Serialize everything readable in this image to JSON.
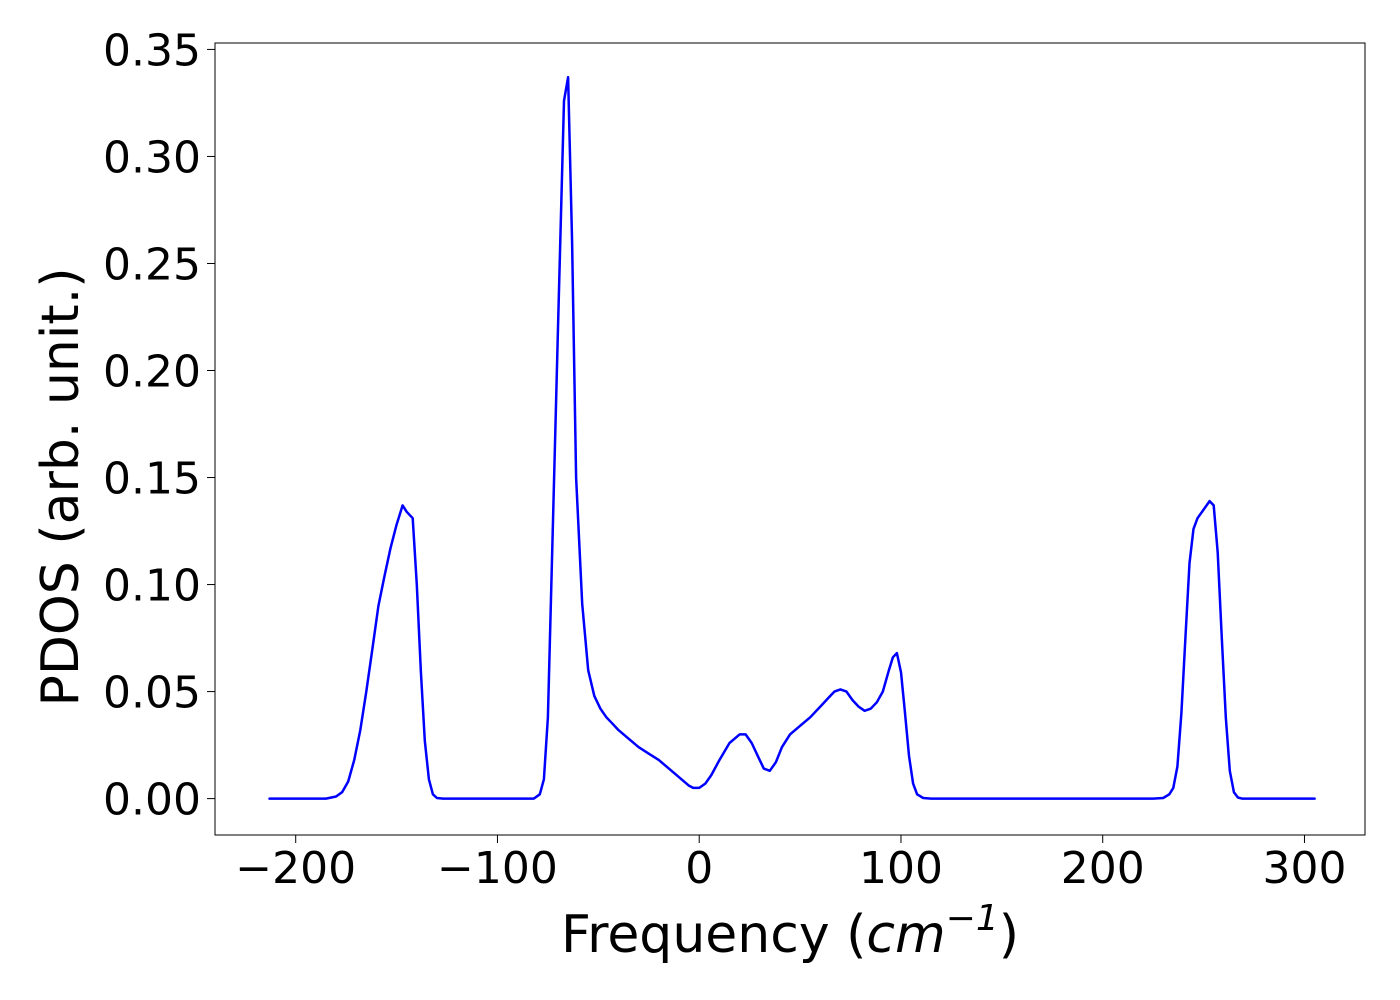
{
  "chart_data": {
    "type": "line",
    "title": "",
    "xlabel_parts": {
      "prefix": "Frequency (",
      "math_base": "cm",
      "math_exponent": "−1",
      "suffix": ")"
    },
    "ylabel": "PDOS (arb. unit.)",
    "xlim": [
      -240,
      330
    ],
    "ylim": [
      -0.017,
      0.353
    ],
    "x_ticks": [
      -200,
      -100,
      0,
      100,
      200,
      300
    ],
    "x_tick_labels": [
      "−200",
      "−100",
      "0",
      "100",
      "200",
      "300"
    ],
    "y_ticks": [
      0.0,
      0.05,
      0.1,
      0.15,
      0.2,
      0.25,
      0.3,
      0.35
    ],
    "y_tick_labels": [
      "0.00",
      "0.05",
      "0.10",
      "0.15",
      "0.20",
      "0.25",
      "0.30",
      "0.35"
    ],
    "grid": false,
    "line_color": "#0000ff",
    "series": [
      {
        "x": [
          -213,
          -185,
          -180,
          -177,
          -174,
          -171,
          -168,
          -165,
          -162,
          -159,
          -156,
          -153,
          -150,
          -147,
          -145,
          -142,
          -140,
          -138,
          -136,
          -134,
          -132,
          -130,
          -127,
          -124,
          -120,
          -110,
          -100,
          -90,
          -82,
          -79,
          -77,
          -75,
          -73,
          -70,
          -67,
          -65,
          -63,
          -61,
          -58,
          -55,
          -52,
          -49,
          -46,
          -43,
          -40,
          -35,
          -30,
          -25,
          -20,
          -15,
          -10,
          -5,
          -3,
          0,
          3,
          6,
          10,
          15,
          20,
          23,
          26,
          29,
          32,
          35,
          38,
          41,
          45,
          50,
          55,
          60,
          64,
          67,
          70,
          73,
          76,
          79,
          82,
          85,
          88,
          91,
          94,
          96,
          98,
          100,
          102,
          104,
          106,
          108,
          111,
          115,
          150,
          200,
          225,
          230,
          233,
          235,
          237,
          239,
          241,
          243,
          245,
          247,
          250,
          253,
          255,
          257,
          259,
          261,
          263,
          265,
          267,
          269,
          271,
          274,
          280,
          305
        ],
        "y": [
          0.0,
          0.0,
          0.001,
          0.003,
          0.008,
          0.018,
          0.032,
          0.05,
          0.07,
          0.09,
          0.104,
          0.117,
          0.128,
          0.137,
          0.134,
          0.131,
          0.1,
          0.06,
          0.027,
          0.009,
          0.002,
          0.0003,
          0.0,
          0.0,
          0.0,
          0.0,
          0.0,
          0.0,
          0.0,
          0.002,
          0.009,
          0.038,
          0.11,
          0.22,
          0.326,
          0.337,
          0.26,
          0.15,
          0.091,
          0.06,
          0.048,
          0.042,
          0.038,
          0.035,
          0.032,
          0.028,
          0.024,
          0.021,
          0.018,
          0.014,
          0.01,
          0.006,
          0.005,
          0.005,
          0.007,
          0.011,
          0.018,
          0.026,
          0.03,
          0.03,
          0.026,
          0.02,
          0.014,
          0.013,
          0.017,
          0.024,
          0.03,
          0.034,
          0.038,
          0.043,
          0.047,
          0.05,
          0.051,
          0.05,
          0.046,
          0.043,
          0.041,
          0.042,
          0.045,
          0.05,
          0.06,
          0.066,
          0.068,
          0.059,
          0.04,
          0.02,
          0.007,
          0.002,
          0.0003,
          0.0,
          0.0,
          0.0,
          0.0,
          0.0003,
          0.002,
          0.005,
          0.015,
          0.04,
          0.075,
          0.11,
          0.126,
          0.131,
          0.135,
          0.139,
          0.137,
          0.115,
          0.075,
          0.038,
          0.013,
          0.003,
          0.0005,
          0.0,
          0.0,
          0.0,
          0.0,
          0.0
        ]
      }
    ]
  }
}
